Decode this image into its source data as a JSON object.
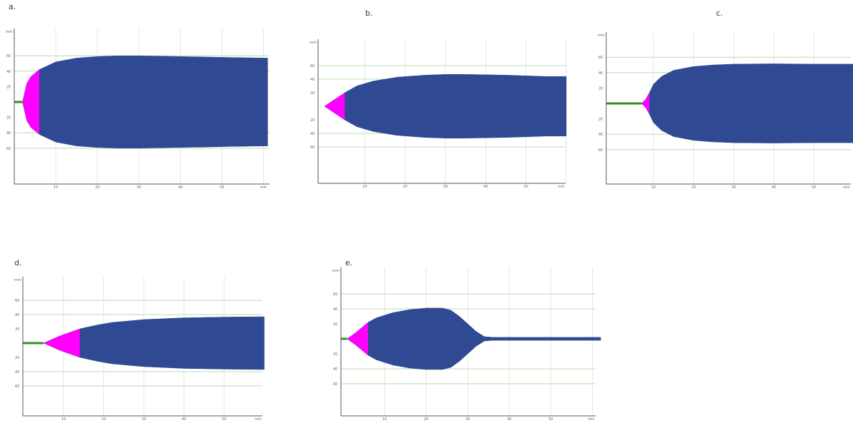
{
  "colors": {
    "envelope": "#2f4a92",
    "onset": "#ff00ff",
    "baseline": "#3f8a1a",
    "gridline_v": "#e6e6e6",
    "gridline_h": "#b8dcb0",
    "axis": "#555555",
    "tick_text": "#666666"
  },
  "chart_data": [
    {
      "id": "a",
      "label": "a.",
      "type": "area",
      "y_unit": "mm",
      "x_unit": "min",
      "x_ticks": [
        "10",
        "20",
        "30",
        "40",
        "50",
        "min"
      ],
      "y_ticks": [
        "60",
        "40",
        "20",
        "20",
        "40",
        "60"
      ],
      "xlim": [
        0,
        62
      ],
      "ylim": [
        -100,
        100
      ],
      "r_time": 2,
      "k_time": 6,
      "points": [
        [
          0,
          0
        ],
        [
          1,
          0
        ],
        [
          2,
          0
        ],
        [
          3,
          24
        ],
        [
          4,
          33
        ],
        [
          6,
          42
        ],
        [
          10,
          52
        ],
        [
          15,
          57
        ],
        [
          20,
          59
        ],
        [
          25,
          60
        ],
        [
          30,
          60
        ],
        [
          35,
          59.5
        ],
        [
          40,
          59
        ],
        [
          45,
          58.5
        ],
        [
          50,
          58
        ],
        [
          55,
          57.5
        ],
        [
          61,
          57
        ]
      ]
    },
    {
      "id": "b",
      "label": "b.",
      "type": "area",
      "y_unit": "mm",
      "x_unit": "min",
      "x_ticks": [
        "10",
        "20",
        "30",
        "40",
        "50",
        "min"
      ],
      "y_ticks": [
        "60",
        "40",
        "20",
        "20",
        "40",
        "60"
      ],
      "xlim": [
        0,
        62
      ],
      "ylim": [
        -100,
        100
      ],
      "r_time": 0,
      "k_time": 5,
      "points": [
        [
          0,
          0
        ],
        [
          5,
          20
        ],
        [
          8,
          30
        ],
        [
          12,
          37
        ],
        [
          18,
          43
        ],
        [
          25,
          46
        ],
        [
          30,
          47
        ],
        [
          35,
          47
        ],
        [
          40,
          46.5
        ],
        [
          45,
          46
        ],
        [
          50,
          45
        ],
        [
          55,
          44
        ],
        [
          60,
          44
        ]
      ]
    },
    {
      "id": "c",
      "label": "c.",
      "type": "area",
      "y_unit": "mm",
      "x_unit": "min",
      "x_ticks": [
        "10",
        "20",
        "30",
        "40",
        "50",
        "min"
      ],
      "y_ticks": [
        "60",
        "40",
        "20",
        "20",
        "40",
        "60"
      ],
      "xlim": [
        0,
        62
      ],
      "ylim": [
        -100,
        100
      ],
      "r_time": 7,
      "k_time": 9,
      "points": [
        [
          0,
          0
        ],
        [
          7,
          0
        ],
        [
          8,
          5
        ],
        [
          9,
          14
        ],
        [
          10,
          25
        ],
        [
          12,
          35
        ],
        [
          15,
          43
        ],
        [
          20,
          48
        ],
        [
          25,
          50
        ],
        [
          30,
          51
        ],
        [
          40,
          51.5
        ],
        [
          50,
          51
        ],
        [
          60,
          51
        ]
      ]
    },
    {
      "id": "d",
      "label": "d.",
      "type": "area",
      "y_unit": "mm",
      "x_unit": "min",
      "x_ticks": [
        "10",
        "20",
        "30",
        "40",
        "50",
        "min"
      ],
      "y_ticks": [
        "60",
        "40",
        "20",
        "20",
        "40",
        "60"
      ],
      "xlim": [
        0,
        62
      ],
      "ylim": [
        -100,
        100
      ],
      "r_time": 5,
      "k_time": 14,
      "points": [
        [
          0,
          0
        ],
        [
          5,
          0
        ],
        [
          9,
          10
        ],
        [
          14,
          20
        ],
        [
          18,
          25
        ],
        [
          22,
          29
        ],
        [
          30,
          33
        ],
        [
          40,
          35.5
        ],
        [
          50,
          36.5
        ],
        [
          60,
          37
        ]
      ]
    },
    {
      "id": "e",
      "label": "e.",
      "type": "area",
      "y_unit": "mm",
      "x_unit": "min",
      "x_ticks": [
        "10",
        "20",
        "30",
        "40",
        "50",
        "min"
      ],
      "y_ticks": [
        "60",
        "40",
        "20",
        "20",
        "40",
        "60"
      ],
      "xlim": [
        0,
        62
      ],
      "ylim": [
        -100,
        100
      ],
      "r_time": 1,
      "k_time": 6,
      "points": [
        [
          0,
          0
        ],
        [
          1,
          0
        ],
        [
          3,
          8
        ],
        [
          6,
          22
        ],
        [
          8,
          28
        ],
        [
          12,
          35
        ],
        [
          16,
          39
        ],
        [
          20,
          41
        ],
        [
          24,
          41
        ],
        [
          26,
          38
        ],
        [
          28,
          30
        ],
        [
          30,
          20
        ],
        [
          32,
          10
        ],
        [
          34,
          3
        ],
        [
          36,
          2
        ],
        [
          40,
          2
        ],
        [
          50,
          2
        ],
        [
          62,
          2
        ]
      ]
    }
  ]
}
